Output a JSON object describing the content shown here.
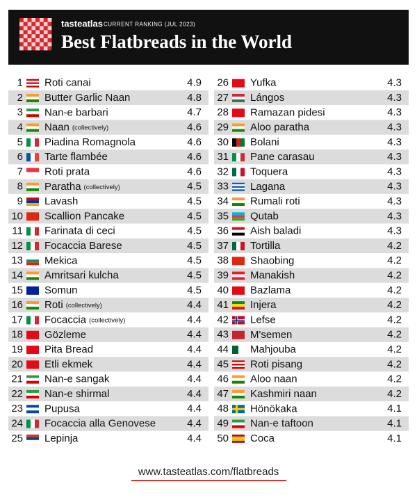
{
  "header": {
    "brand": "tasteatlas",
    "ranking": "CURRENT RANKING (JUL 2023)",
    "title": "Best Flatbreads in the World"
  },
  "table": {
    "rows": [
      {
        "rank": 1,
        "name": "Roti canai",
        "score": 4.9
      },
      {
        "rank": 2,
        "name": "Butter Garlic Naan",
        "score": 4.8
      },
      {
        "rank": 3,
        "name": "Nan-e barbari",
        "score": 4.7
      },
      {
        "rank": 4,
        "name": "Naan",
        "note": "(collectively)",
        "score": 4.6
      },
      {
        "rank": 5,
        "name": "Piadina Romagnola",
        "score": 4.6
      },
      {
        "rank": 6,
        "name": "Tarte flambée",
        "score": 4.6
      },
      {
        "rank": 7,
        "name": "Roti prata",
        "score": 4.6
      },
      {
        "rank": 8,
        "name": "Paratha",
        "note": "(collectively)",
        "score": 4.5
      },
      {
        "rank": 9,
        "name": "Lavash",
        "score": 4.5
      },
      {
        "rank": 10,
        "name": "Scallion Pancake",
        "score": 4.5
      },
      {
        "rank": 11,
        "name": "Farinata di ceci",
        "score": 4.5
      },
      {
        "rank": 12,
        "name": "Focaccia Barese",
        "score": 4.5
      },
      {
        "rank": 13,
        "name": "Mekica",
        "score": 4.5
      },
      {
        "rank": 14,
        "name": "Amritsari kulcha",
        "score": 4.5
      },
      {
        "rank": 15,
        "name": "Somun",
        "score": 4.5
      },
      {
        "rank": 16,
        "name": "Roti",
        "note": "(collectively)",
        "score": 4.4
      },
      {
        "rank": 17,
        "name": "Focaccia",
        "note": "(collectively)",
        "score": 4.4
      },
      {
        "rank": 18,
        "name": "Gözleme",
        "score": 4.4
      },
      {
        "rank": 19,
        "name": "Pita Bread",
        "score": 4.4
      },
      {
        "rank": 20,
        "name": "Etli ekmek",
        "score": 4.4
      },
      {
        "rank": 21,
        "name": "Nan-e sangak",
        "score": 4.4
      },
      {
        "rank": 22,
        "name": "Nan-e shirmal",
        "score": 4.4
      },
      {
        "rank": 23,
        "name": "Pupusa",
        "score": 4.4
      },
      {
        "rank": 24,
        "name": "Focaccia alla Genovese",
        "score": 4.4
      },
      {
        "rank": 25,
        "name": "Lepinja",
        "score": 4.4
      },
      {
        "rank": 26,
        "name": "Yufka",
        "score": 4.3
      },
      {
        "rank": 27,
        "name": "Lángos",
        "score": 4.3
      },
      {
        "rank": 28,
        "name": "Ramazan pidesi",
        "score": 4.3
      },
      {
        "rank": 29,
        "name": "Aloo paratha",
        "score": 4.3
      },
      {
        "rank": 30,
        "name": "Bolani",
        "score": 4.3
      },
      {
        "rank": 31,
        "name": "Pane carasau",
        "score": 4.3
      },
      {
        "rank": 32,
        "name": "Toquera",
        "score": 4.3
      },
      {
        "rank": 33,
        "name": "Lagana",
        "score": 4.3
      },
      {
        "rank": 34,
        "name": "Rumali roti",
        "score": 4.3
      },
      {
        "rank": 35,
        "name": "Qutab",
        "score": 4.3
      },
      {
        "rank": 36,
        "name": "Aish baladi",
        "score": 4.3
      },
      {
        "rank": 37,
        "name": "Tortilla",
        "score": 4.2
      },
      {
        "rank": 38,
        "name": "Shaobing",
        "score": 4.2
      },
      {
        "rank": 39,
        "name": "Manakish",
        "score": 4.2
      },
      {
        "rank": 40,
        "name": "Bazlama",
        "score": 4.2
      },
      {
        "rank": 41,
        "name": "Injera",
        "score": 4.2
      },
      {
        "rank": 42,
        "name": "Lefse",
        "score": 4.2
      },
      {
        "rank": 43,
        "name": "M'semen",
        "score": 4.2
      },
      {
        "rank": 44,
        "name": "Mahjouba",
        "score": 4.2
      },
      {
        "rank": 45,
        "name": "Roti pisang",
        "score": 4.2
      },
      {
        "rank": 46,
        "name": "Aloo naan",
        "score": 4.2
      },
      {
        "rank": 47,
        "name": "Kashmiri naan",
        "score": 4.2
      },
      {
        "rank": 48,
        "name": "Hönökaka",
        "score": 4.1
      },
      {
        "rank": 49,
        "name": "Nan-e taftoon",
        "score": 4.1
      },
      {
        "rank": 50,
        "name": "Coca",
        "score": 4.1
      }
    ]
  },
  "footer": {
    "url": "www.tasteatlas.com/flatbreads"
  }
}
